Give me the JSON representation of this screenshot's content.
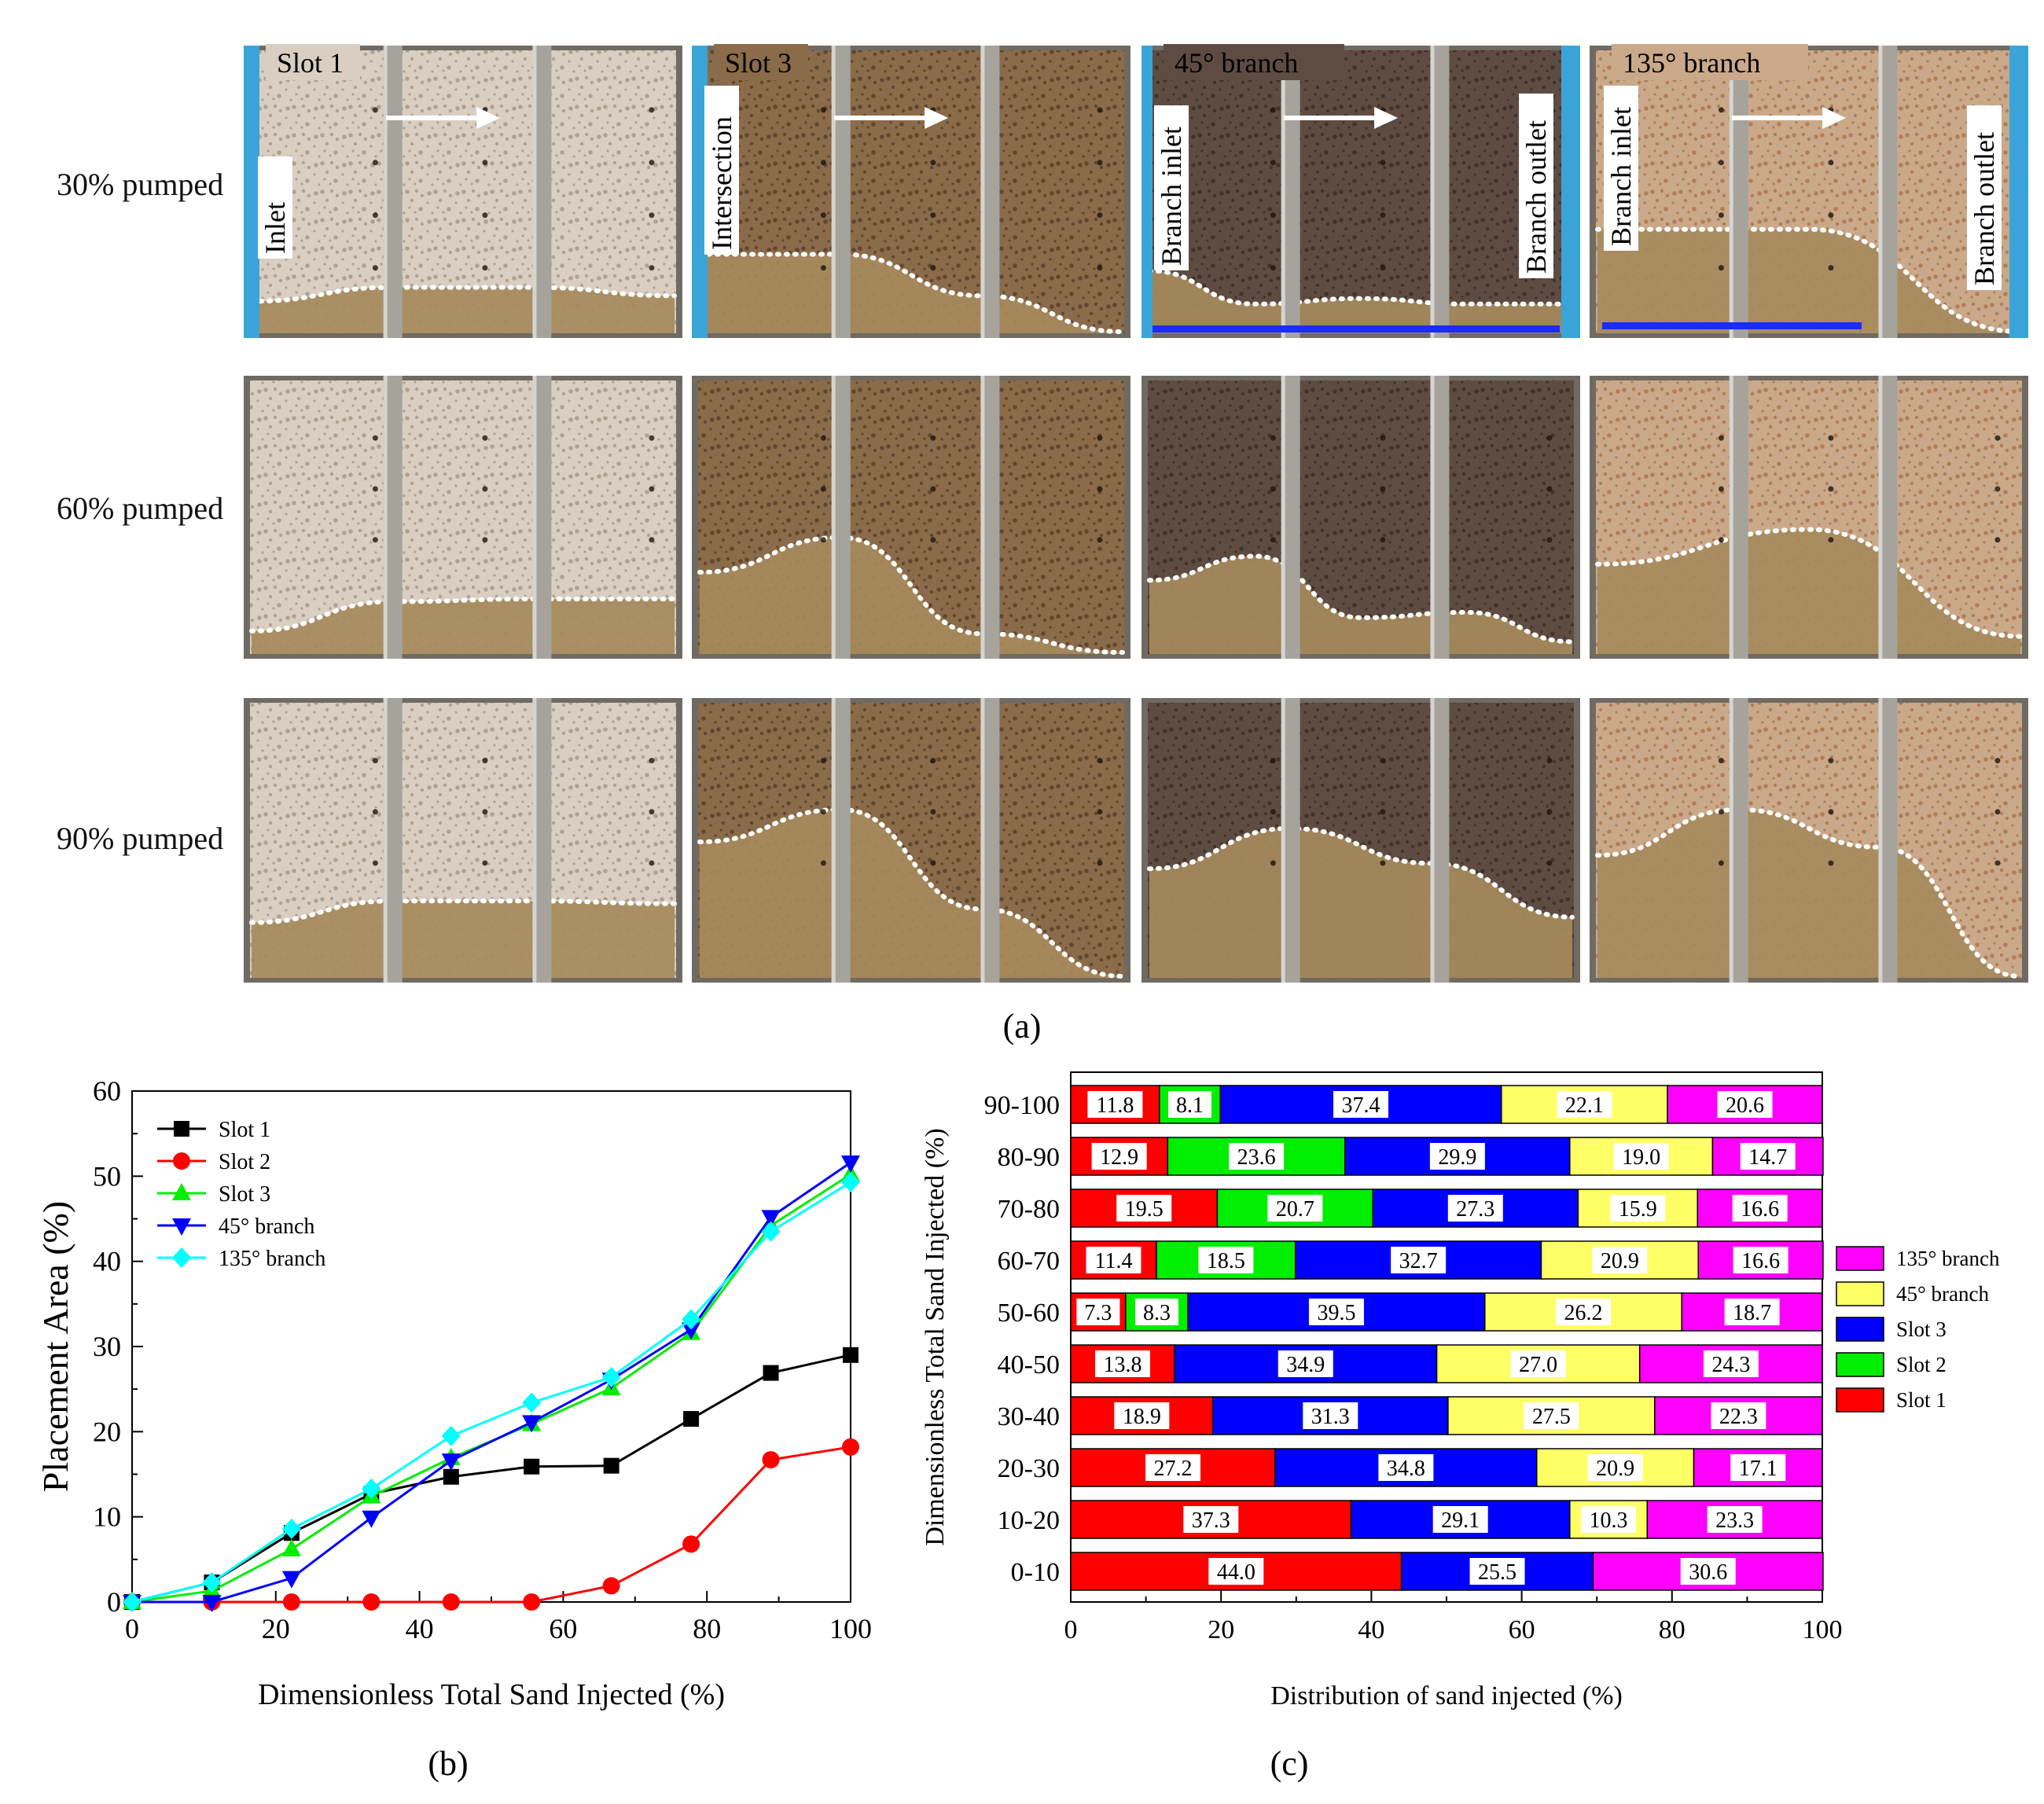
{
  "panel_a": {
    "caption_letter": "a",
    "row_labels": [
      "30% pumped",
      "60% pumped",
      "90% pumped"
    ],
    "column_titles": [
      "Slot 1",
      "Slot 3",
      "45° branch",
      "135° branch"
    ],
    "side_labels": {
      "slot1_inlet": "Inlet",
      "slot3_intersection": "Intersection",
      "branch45_inlet": "Branch inlet",
      "branch45_outlet": "Branch outlet",
      "branch135_inlet": "Branch inlet",
      "branch135_outlet": "Branch outlet"
    },
    "colors": {
      "slot1": "#d8cfc2",
      "slot3": "#8a6b4a",
      "branch45": "#5e4c42",
      "branch135": "#caa98a",
      "sand": "#a68a5c",
      "inlet_bar": "#3aa4d8",
      "bottom_line": "#1a2cff"
    },
    "interface_heights": [
      [
        [
          0.11,
          0.16,
          0.16,
          0.13
        ],
        [
          0.28,
          0.28,
          0.13,
          0.0
        ],
        [
          0.22,
          0.1,
          0.12,
          0.1,
          0.1
        ],
        [
          0.37,
          0.37,
          0.0
        ]
      ],
      [
        [
          0.08,
          0.19,
          0.2,
          0.2
        ],
        [
          0.3,
          0.43,
          0.07,
          0.0
        ],
        [
          0.27,
          0.36,
          0.13,
          0.15,
          0.04
        ],
        [
          0.33,
          0.46,
          0.06
        ]
      ],
      [
        [
          0.2,
          0.28,
          0.28,
          0.27
        ],
        [
          0.5,
          0.62,
          0.25,
          0.0
        ],
        [
          0.4,
          0.55,
          0.42,
          0.22
        ],
        [
          0.45,
          0.62,
          0.48,
          0.0
        ]
      ]
    ]
  },
  "panel_b": {
    "caption_letter": "b",
    "chart_data": {
      "type": "line",
      "xlabel": "Dimensionless Total Sand Injected (%)",
      "ylabel": "Placement Area (%)",
      "xlim": [
        0,
        100
      ],
      "ylim": [
        0,
        60
      ],
      "xticks": [
        0,
        20,
        40,
        60,
        80,
        100
      ],
      "yticks": [
        0,
        10,
        20,
        30,
        40,
        50,
        60
      ],
      "legend_position": "top-left",
      "x": [
        0,
        11.1,
        22.2,
        33.3,
        44.4,
        55.6,
        66.7,
        77.8,
        88.9,
        100
      ],
      "series": [
        {
          "name": "Slot 1",
          "color": "#000000",
          "marker": "square",
          "values": [
            0,
            2.3,
            8.1,
            12.7,
            14.7,
            15.9,
            16.0,
            21.5,
            26.9,
            29.0
          ]
        },
        {
          "name": "Slot 2",
          "color": "#ff0000",
          "marker": "circle",
          "values": [
            0,
            0,
            0,
            0,
            0,
            0,
            1.9,
            6.8,
            16.7,
            18.2
          ]
        },
        {
          "name": "Slot 3",
          "color": "#00ee00",
          "marker": "triangle-up",
          "values": [
            0,
            1.3,
            6.2,
            12.4,
            16.9,
            20.9,
            25.1,
            31.6,
            44.2,
            50.2
          ]
        },
        {
          "name": "45° branch",
          "color": "#0000ff",
          "marker": "triangle-down",
          "values": [
            0,
            0,
            2.8,
            9.9,
            16.6,
            21.1,
            26.1,
            32.0,
            45.2,
            51.6
          ]
        },
        {
          "name": "135° branch",
          "color": "#00ffff",
          "marker": "diamond",
          "values": [
            0,
            2.3,
            8.6,
            13.3,
            19.5,
            23.4,
            26.4,
            33.2,
            43.5,
            49.3
          ]
        }
      ]
    }
  },
  "panel_c": {
    "caption_letter": "c",
    "chart_data": {
      "type": "bar",
      "orientation": "horizontal",
      "stacked": true,
      "xlabel": "Distribution of sand injected (%)",
      "ylabel": "Dimensionless Total Sand Injected (%)",
      "xlim": [
        0,
        100
      ],
      "xticks": [
        0,
        20,
        40,
        60,
        80,
        100
      ],
      "legend_position": "right",
      "categories": [
        "90-100",
        "80-90",
        "70-80",
        "60-70",
        "50-60",
        "40-50",
        "30-40",
        "20-30",
        "10-20",
        "0-10"
      ],
      "series": [
        {
          "name": "Slot 1",
          "color": "#ff0000",
          "values": [
            11.8,
            12.9,
            19.5,
            11.4,
            7.3,
            13.8,
            18.9,
            27.2,
            37.3,
            44.0
          ]
        },
        {
          "name": "Slot 2",
          "color": "#00ee00",
          "values": [
            8.1,
            23.6,
            20.7,
            18.5,
            8.3,
            0,
            0,
            0,
            0,
            0
          ]
        },
        {
          "name": "Slot 3",
          "color": "#0000ff",
          "values": [
            37.4,
            29.9,
            27.3,
            32.7,
            39.5,
            34.9,
            31.3,
            34.8,
            29.1,
            25.5
          ]
        },
        {
          "name": "45° branch",
          "color": "#ffff66",
          "values": [
            22.1,
            19.0,
            15.9,
            20.9,
            26.2,
            27.0,
            27.5,
            20.9,
            10.3,
            0
          ]
        },
        {
          "name": "135° branch",
          "color": "#ff00ff",
          "values": [
            20.6,
            14.7,
            16.6,
            16.6,
            18.7,
            24.3,
            22.3,
            17.1,
            23.3,
            30.6
          ]
        }
      ],
      "legend_order": [
        "135° branch",
        "45° branch",
        "Slot 3",
        "Slot 2",
        "Slot 1"
      ]
    }
  }
}
